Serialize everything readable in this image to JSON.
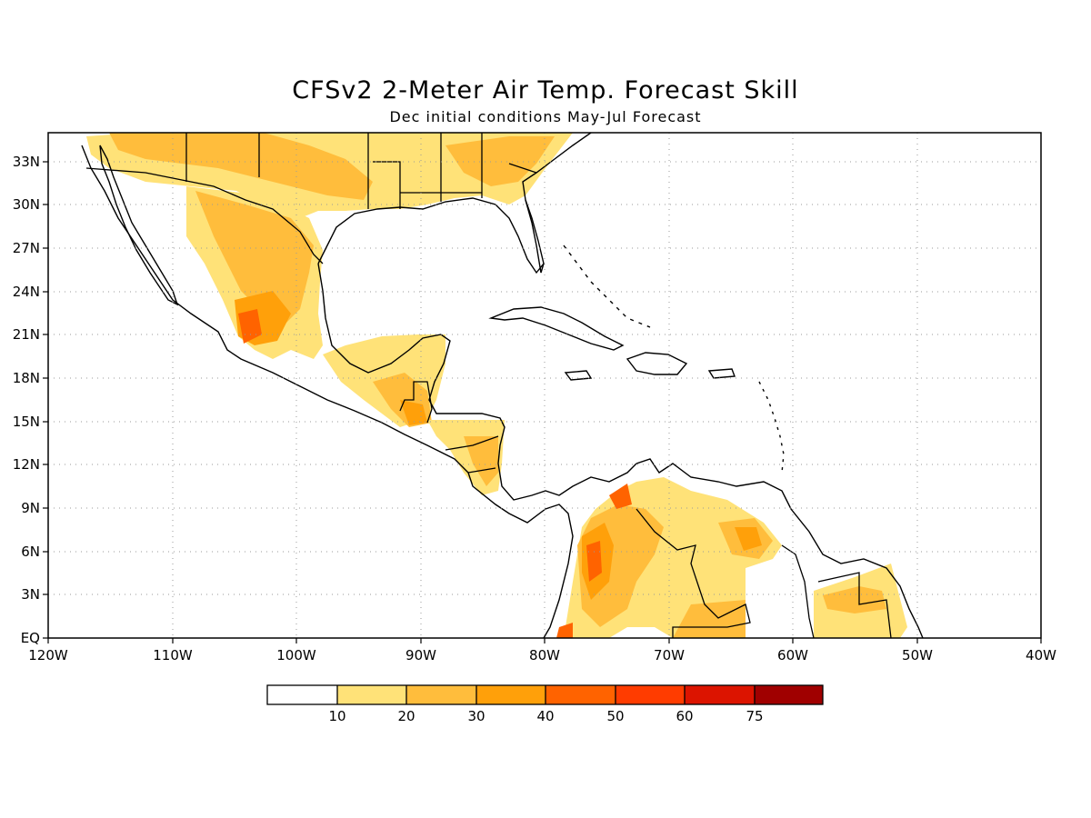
{
  "title": "CFSv2 2-Meter Air Temp. Forecast Skill",
  "subtitle": "Dec initial conditions   May-Jul Forecast",
  "map": {
    "projection": "lat-lon",
    "lon_range": [
      -120,
      -40
    ],
    "lat_range": [
      0,
      35
    ],
    "grid": "dotted",
    "lat_labels": [
      "EQ",
      "3N",
      "6N",
      "9N",
      "12N",
      "15N",
      "18N",
      "21N",
      "24N",
      "27N",
      "30N",
      "33N"
    ],
    "lon_labels": [
      "120W",
      "110W",
      "100W",
      "90W",
      "80W",
      "70W",
      "60W",
      "50W",
      "40W"
    ]
  },
  "legend": {
    "labels": [
      "10",
      "20",
      "30",
      "40",
      "50",
      "60",
      "75"
    ],
    "colors": [
      "#ffffff",
      "#ffe278",
      "#ffbd3c",
      "#ffa00a",
      "#ff6300",
      "#ff3c00",
      "#dc1400",
      "#a00000"
    ]
  },
  "chart_data": {
    "type": "heatmap",
    "title": "CFSv2 2-Meter Air Temp. Forecast Skill",
    "subtitle": "Dec initial conditions   May-Jul Forecast",
    "xlim": [
      -120,
      -40
    ],
    "ylim": [
      0,
      35
    ],
    "contour_levels": [
      10,
      20,
      30,
      40,
      50,
      60,
      75
    ],
    "regions": [
      {
        "lon": [
          -113,
          -85
        ],
        "lat": [
          29,
          35
        ],
        "skill": 20
      },
      {
        "lon": [
          -107,
          -97
        ],
        "lat": [
          18,
          31
        ],
        "skill": 20
      },
      {
        "lon": [
          -104,
          -96
        ],
        "lat": [
          22,
          30
        ],
        "skill": 30
      },
      {
        "lon": [
          -104,
          -103
        ],
        "lat": [
          20,
          22
        ],
        "skill": 40
      },
      {
        "lon": [
          -93,
          -84
        ],
        "lat": [
          15,
          21
        ],
        "skill": 20
      },
      {
        "lon": [
          -91,
          -89
        ],
        "lat": [
          15,
          17
        ],
        "skill": 30
      },
      {
        "lon": [
          -88,
          -83
        ],
        "lat": [
          10,
          15
        ],
        "skill": 20
      },
      {
        "lon": [
          -78,
          -64
        ],
        "lat": [
          0,
          11
        ],
        "skill": 20
      },
      {
        "lon": [
          -78,
          -74
        ],
        "lat": [
          2,
          10
        ],
        "skill": 30
      },
      {
        "lon": [
          -77,
          -74
        ],
        "lat": [
          5,
          10
        ],
        "skill": 40
      },
      {
        "lon": [
          -66,
          -63
        ],
        "lat": [
          5,
          7
        ],
        "skill": 30
      },
      {
        "lon": [
          -58,
          -51
        ],
        "lat": [
          0,
          5
        ],
        "skill": 20
      }
    ]
  }
}
